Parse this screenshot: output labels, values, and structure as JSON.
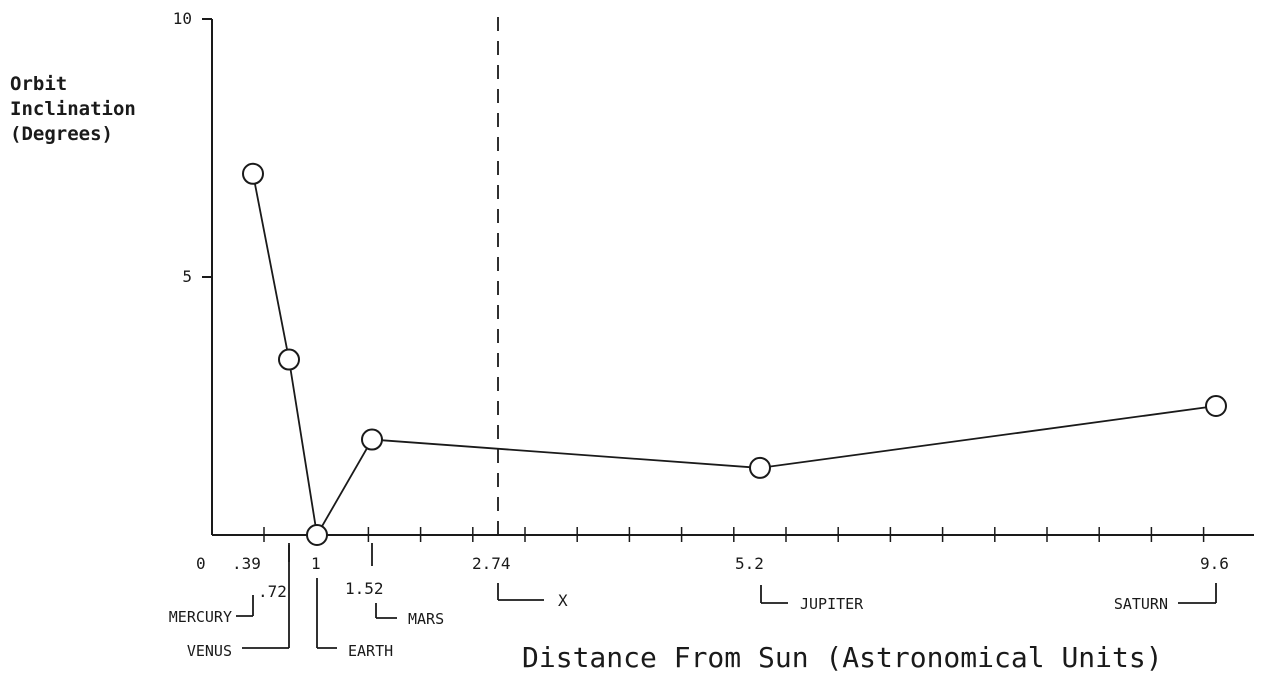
{
  "chart_data": {
    "type": "line",
    "ylabel_lines": [
      "Orbit",
      "Inclination",
      "(Degrees)"
    ],
    "xlabel": "Distance From Sun (Astronomical Units)",
    "y_ticks": [
      {
        "value": 10,
        "label": "10"
      },
      {
        "value": 5,
        "label": "5"
      }
    ],
    "ylim": [
      0,
      10
    ],
    "xlim": [
      0,
      10.3
    ],
    "x_origin_label": "0",
    "points": [
      {
        "x": 0.39,
        "y": 7.0,
        "tick": ".39",
        "name": "MERCURY"
      },
      {
        "x": 0.72,
        "y": 3.4,
        "tick": ".72",
        "name": "VENUS"
      },
      {
        "x": 1.0,
        "y": 0.0,
        "tick": "1",
        "name": "EARTH"
      },
      {
        "x": 1.52,
        "y": 1.85,
        "tick": "1.52",
        "name": "MARS"
      },
      {
        "x": 5.2,
        "y": 1.3,
        "tick": "5.2",
        "name": "JUPITER"
      },
      {
        "x": 9.6,
        "y": 2.5,
        "tick": "9.6",
        "name": "SATURN"
      }
    ],
    "marker": {
      "x": 2.74,
      "tick": "2.74",
      "name": "X",
      "style": "dashed"
    },
    "grid": false,
    "legend": "none"
  }
}
